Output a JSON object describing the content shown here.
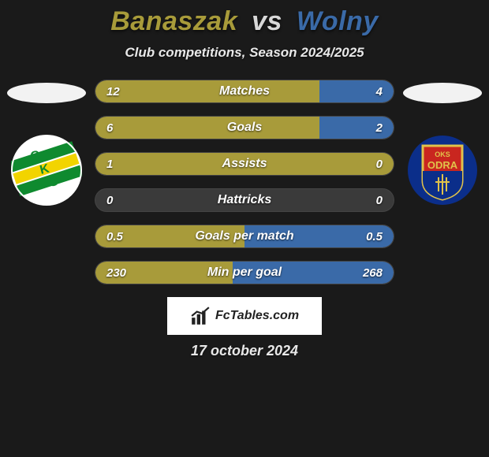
{
  "title": {
    "player1": "Banaszak",
    "vs": "vs",
    "player2": "Wolny",
    "player1_color": "#a89b3a",
    "player2_color": "#3a6aa8"
  },
  "subtitle": "Club competitions, Season 2024/2025",
  "background_color": "#1a1a1a",
  "bar_colors": {
    "left": "#a89b3a",
    "right": "#3a6aa8",
    "track": "#3a3a3a"
  },
  "stats": [
    {
      "label": "Matches",
      "left_val": "12",
      "right_val": "4",
      "left_pct": 75,
      "right_pct": 25
    },
    {
      "label": "Goals",
      "left_val": "6",
      "right_val": "2",
      "left_pct": 75,
      "right_pct": 25
    },
    {
      "label": "Assists",
      "left_val": "1",
      "right_val": "0",
      "left_pct": 100,
      "right_pct": 0
    },
    {
      "label": "Hattricks",
      "left_val": "0",
      "right_val": "0",
      "left_pct": 0,
      "right_pct": 0
    },
    {
      "label": "Goals per match",
      "left_val": "0.5",
      "right_val": "0.5",
      "left_pct": 50,
      "right_pct": 50
    },
    {
      "label": "Min per goal",
      "left_val": "230",
      "right_val": "268",
      "left_pct": 46,
      "right_pct": 54
    }
  ],
  "branding": "FcTables.com",
  "date": "17 october 2024",
  "club_left": {
    "bg": "#ffffff",
    "stripe1": "#0f8a2f",
    "stripe2": "#f2d400",
    "text": "GKS"
  },
  "club_right": {
    "bg": "#0b2e8a",
    "shield_border": "#e0c24a",
    "stripe_top": "#c9261f",
    "stripe_bottom": "#0b2e8a",
    "text_top": "OKS",
    "text_main": "ODRA"
  }
}
